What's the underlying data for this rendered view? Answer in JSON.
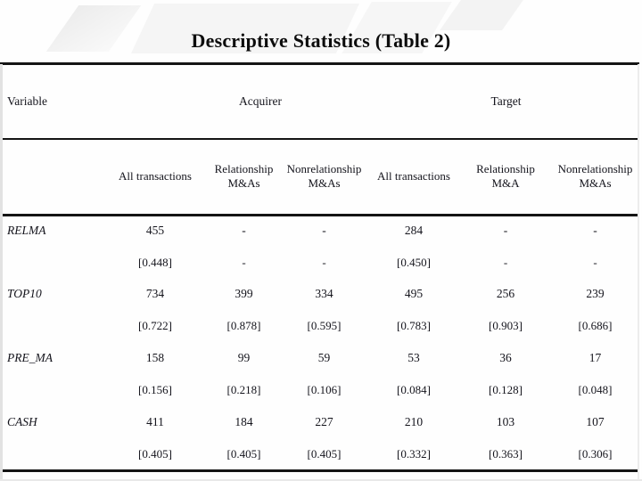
{
  "title": "Descriptive Statistics (Table 2)",
  "table": {
    "variable_header": "Variable",
    "group_headers": {
      "acquirer": "Acquirer",
      "target": "Target"
    },
    "column_headers": [
      "All transactions",
      "Relationship M&As",
      "Nonrelationship M&As",
      "All transactions",
      "Relationship M&A",
      "Nonrelationship M&As"
    ],
    "rows": [
      {
        "variable": "RELMA",
        "values": [
          "455",
          "-",
          "-",
          "284",
          "-",
          "-"
        ],
        "brackets": [
          "[0.448]",
          "-",
          "-",
          "[0.450]",
          "-",
          "-"
        ]
      },
      {
        "variable": "TOP10",
        "values": [
          "734",
          "399",
          "334",
          "495",
          "256",
          "239"
        ],
        "brackets": [
          "[0.722]",
          "[0.878]",
          "[0.595]",
          "[0.783]",
          "[0.903]",
          "[0.686]"
        ]
      },
      {
        "variable": "PRE_MA",
        "values": [
          "158",
          "99",
          "59",
          "53",
          "36",
          "17"
        ],
        "brackets": [
          "[0.156]",
          "[0.218]",
          "[0.106]",
          "[0.084]",
          "[0.128]",
          "[0.048]"
        ]
      },
      {
        "variable": "CASH",
        "values": [
          "411",
          "184",
          "227",
          "210",
          "103",
          "107"
        ],
        "brackets": [
          "[0.405]",
          "[0.405]",
          "[0.405]",
          "[0.332]",
          "[0.363]",
          "[0.306]"
        ]
      }
    ]
  },
  "colors": {
    "rule": "#141414",
    "text": "#14141c",
    "background": "#fefefe"
  }
}
